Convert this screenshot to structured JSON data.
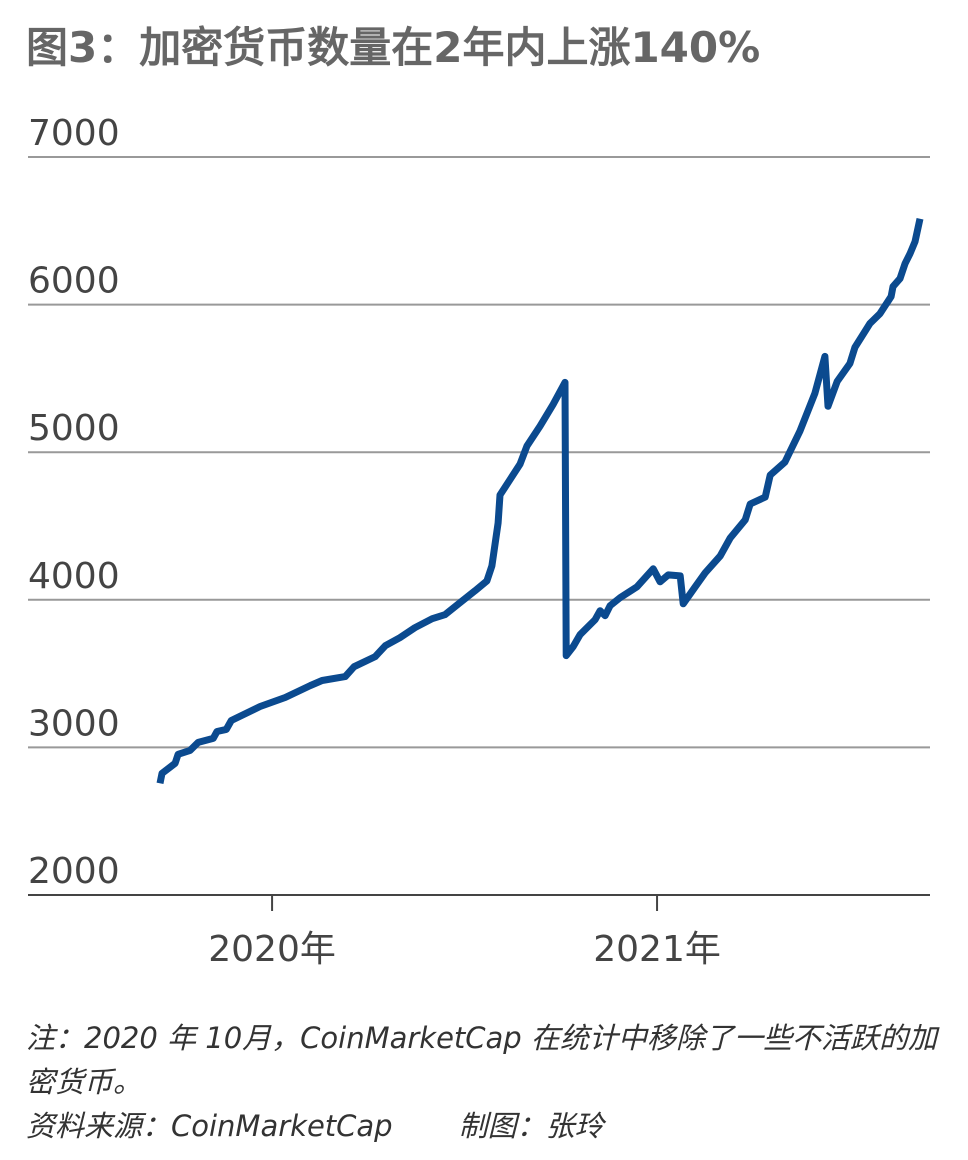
{
  "chart_data": {
    "type": "line",
    "title": "图3：加密货币数量在2年内上涨140%",
    "note": "注：2020 年 10月，CoinMarketCap 在统计中移除了一些不活跃的加密货币。",
    "source": "资料来源：CoinMarketCap",
    "credit": "制图：张玲",
    "color": "#0b4a8f",
    "grid": true,
    "xlim": [
      2019.366,
      2021.709
    ],
    "ylim": [
      2000,
      7000
    ],
    "xticks": [
      {
        "value": 2020,
        "label": "2020年"
      },
      {
        "value": 2021,
        "label": "2021年"
      }
    ],
    "yticks": [
      2000,
      3000,
      4000,
      5000,
      6000,
      7000
    ],
    "x": [
      2019.709,
      2019.714,
      2019.748,
      2019.756,
      2019.787,
      2019.808,
      2019.847,
      2019.857,
      2019.881,
      2019.894,
      2019.969,
      2020.034,
      2020.099,
      2020.13,
      2020.19,
      2020.213,
      2020.268,
      2020.294,
      2020.332,
      2020.371,
      2020.416,
      2020.449,
      2020.488,
      2020.527,
      2020.558,
      2020.571,
      2020.587,
      2020.592,
      2020.644,
      2020.662,
      2020.696,
      2020.73,
      2020.761,
      2020.764,
      2020.782,
      2020.8,
      2020.839,
      2020.852,
      2020.865,
      2020.878,
      2020.904,
      2020.948,
      2020.99,
      2021.008,
      2021.029,
      2021.06,
      2021.068,
      2021.099,
      2021.125,
      2021.164,
      2021.19,
      2021.229,
      2021.242,
      2021.281,
      2021.294,
      2021.332,
      2021.371,
      2021.41,
      2021.436,
      2021.444,
      2021.468,
      2021.501,
      2021.514,
      2021.54,
      2021.553,
      2021.579,
      2021.608,
      2021.613,
      2021.631,
      2021.644,
      2021.657,
      2021.67,
      2021.683
    ],
    "values": [
      2757,
      2824,
      2892,
      2953,
      2980,
      3034,
      3061,
      3108,
      3122,
      3182,
      3277,
      3338,
      3419,
      3453,
      3480,
      3547,
      3615,
      3689,
      3743,
      3811,
      3872,
      3899,
      3980,
      4061,
      4128,
      4230,
      4520,
      4710,
      4919,
      5041,
      5176,
      5324,
      5473,
      3622,
      3682,
      3764,
      3865,
      3926,
      3892,
      3960,
      4014,
      4088,
      4210,
      4122,
      4169,
      4162,
      3973,
      4088,
      4183,
      4297,
      4419,
      4541,
      4649,
      4696,
      4845,
      4933,
      5142,
      5399,
      5649,
      5311,
      5480,
      5601,
      5710,
      5818,
      5872,
      5939,
      6054,
      6122,
      6176,
      6277,
      6345,
      6426,
      6581
    ]
  }
}
